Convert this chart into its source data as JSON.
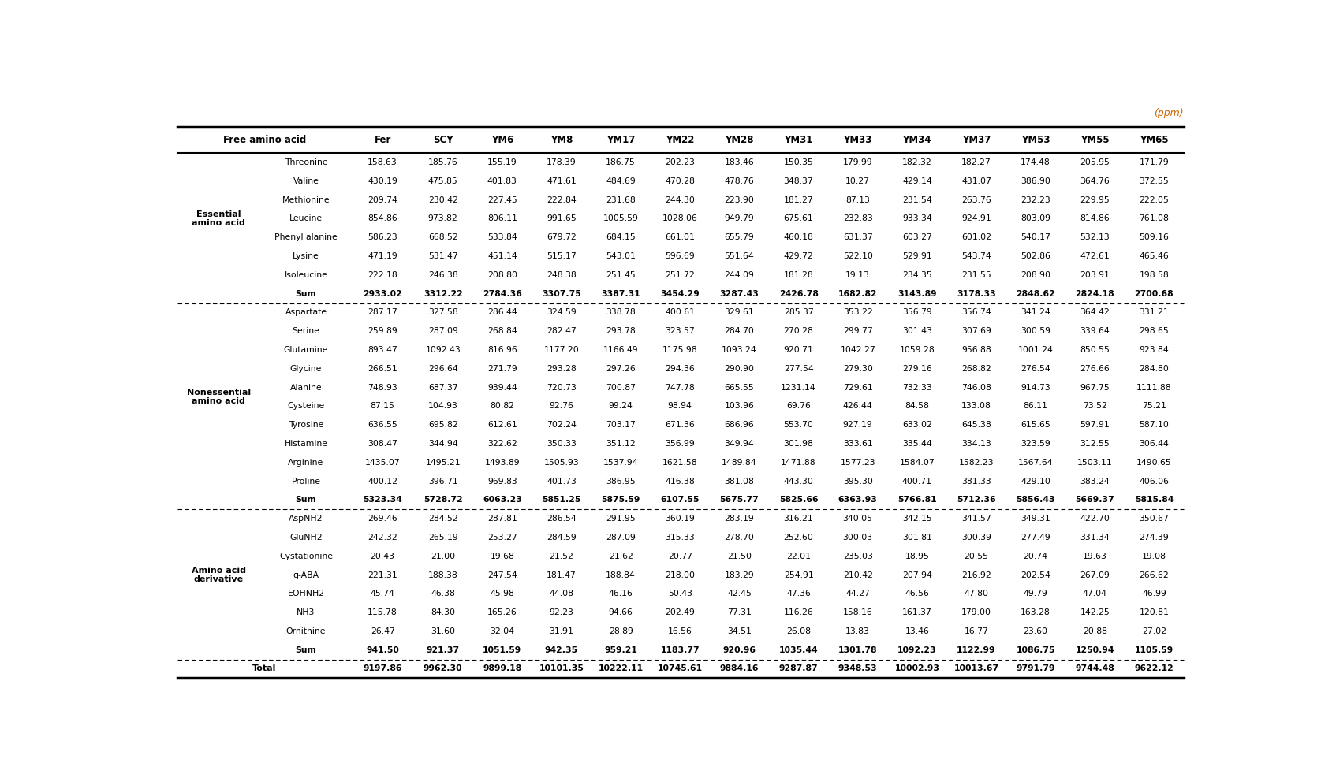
{
  "title_note": "(ppm)",
  "col_headers": [
    "Free amino acid",
    "Fer",
    "SCY",
    "YM6",
    "YM8",
    "YM17",
    "YM22",
    "YM28",
    "YM31",
    "YM33",
    "YM34",
    "YM37",
    "YM53",
    "YM55",
    "YM65"
  ],
  "groups": [
    {
      "group_label": "Essential\namino acid",
      "rows": [
        [
          "Threonine",
          "158.63",
          "185.76",
          "155.19",
          "178.39",
          "186.75",
          "202.23",
          "183.46",
          "150.35",
          "179.99",
          "182.32",
          "182.27",
          "174.48",
          "205.95",
          "171.79"
        ],
        [
          "Valine",
          "430.19",
          "475.85",
          "401.83",
          "471.61",
          "484.69",
          "470.28",
          "478.76",
          "348.37",
          "10.27",
          "429.14",
          "431.07",
          "386.90",
          "364.76",
          "372.55"
        ],
        [
          "Methionine",
          "209.74",
          "230.42",
          "227.45",
          "222.84",
          "231.68",
          "244.30",
          "223.90",
          "181.27",
          "87.13",
          "231.54",
          "263.76",
          "232.23",
          "229.95",
          "222.05"
        ],
        [
          "Leucine",
          "854.86",
          "973.82",
          "806.11",
          "991.65",
          "1005.59",
          "1028.06",
          "949.79",
          "675.61",
          "232.83",
          "933.34",
          "924.91",
          "803.09",
          "814.86",
          "761.08"
        ],
        [
          "Phenyl alanine",
          "586.23",
          "668.52",
          "533.84",
          "679.72",
          "684.15",
          "661.01",
          "655.79",
          "460.18",
          "631.37",
          "603.27",
          "601.02",
          "540.17",
          "532.13",
          "509.16"
        ],
        [
          "Lysine",
          "471.19",
          "531.47",
          "451.14",
          "515.17",
          "543.01",
          "596.69",
          "551.64",
          "429.72",
          "522.10",
          "529.91",
          "543.74",
          "502.86",
          "472.61",
          "465.46"
        ],
        [
          "Isoleucine",
          "222.18",
          "246.38",
          "208.80",
          "248.38",
          "251.45",
          "251.72",
          "244.09",
          "181.28",
          "19.13",
          "234.35",
          "231.55",
          "208.90",
          "203.91",
          "198.58"
        ],
        [
          "Sum",
          "2933.02",
          "3312.22",
          "2784.36",
          "3307.75",
          "3387.31",
          "3454.29",
          "3287.43",
          "2426.78",
          "1682.82",
          "3143.89",
          "3178.33",
          "2848.62",
          "2824.18",
          "2700.68"
        ]
      ]
    },
    {
      "group_label": "Nonessential\namino acid",
      "rows": [
        [
          "Aspartate",
          "287.17",
          "327.58",
          "286.44",
          "324.59",
          "338.78",
          "400.61",
          "329.61",
          "285.37",
          "353.22",
          "356.79",
          "356.74",
          "341.24",
          "364.42",
          "331.21"
        ],
        [
          "Serine",
          "259.89",
          "287.09",
          "268.84",
          "282.47",
          "293.78",
          "323.57",
          "284.70",
          "270.28",
          "299.77",
          "301.43",
          "307.69",
          "300.59",
          "339.64",
          "298.65"
        ],
        [
          "Glutamine",
          "893.47",
          "1092.43",
          "816.96",
          "1177.20",
          "1166.49",
          "1175.98",
          "1093.24",
          "920.71",
          "1042.27",
          "1059.28",
          "956.88",
          "1001.24",
          "850.55",
          "923.84"
        ],
        [
          "Glycine",
          "266.51",
          "296.64",
          "271.79",
          "293.28",
          "297.26",
          "294.36",
          "290.90",
          "277.54",
          "279.30",
          "279.16",
          "268.82",
          "276.54",
          "276.66",
          "284.80"
        ],
        [
          "Alanine",
          "748.93",
          "687.37",
          "939.44",
          "720.73",
          "700.87",
          "747.78",
          "665.55",
          "1231.14",
          "729.61",
          "732.33",
          "746.08",
          "914.73",
          "967.75",
          "1111.88"
        ],
        [
          "Cysteine",
          "87.15",
          "104.93",
          "80.82",
          "92.76",
          "99.24",
          "98.94",
          "103.96",
          "69.76",
          "426.44",
          "84.58",
          "133.08",
          "86.11",
          "73.52",
          "75.21"
        ],
        [
          "Tyrosine",
          "636.55",
          "695.82",
          "612.61",
          "702.24",
          "703.17",
          "671.36",
          "686.96",
          "553.70",
          "927.19",
          "633.02",
          "645.38",
          "615.65",
          "597.91",
          "587.10"
        ],
        [
          "Histamine",
          "308.47",
          "344.94",
          "322.62",
          "350.33",
          "351.12",
          "356.99",
          "349.94",
          "301.98",
          "333.61",
          "335.44",
          "334.13",
          "323.59",
          "312.55",
          "306.44"
        ],
        [
          "Arginine",
          "1435.07",
          "1495.21",
          "1493.89",
          "1505.93",
          "1537.94",
          "1621.58",
          "1489.84",
          "1471.88",
          "1577.23",
          "1584.07",
          "1582.23",
          "1567.64",
          "1503.11",
          "1490.65"
        ],
        [
          "Proline",
          "400.12",
          "396.71",
          "969.83",
          "401.73",
          "386.95",
          "416.38",
          "381.08",
          "443.30",
          "395.30",
          "400.71",
          "381.33",
          "429.10",
          "383.24",
          "406.06"
        ],
        [
          "Sum",
          "5323.34",
          "5728.72",
          "6063.23",
          "5851.25",
          "5875.59",
          "6107.55",
          "5675.77",
          "5825.66",
          "6363.93",
          "5766.81",
          "5712.36",
          "5856.43",
          "5669.37",
          "5815.84"
        ]
      ]
    },
    {
      "group_label": "Amino acid\nderivative",
      "rows": [
        [
          "AspNH2",
          "269.46",
          "284.52",
          "287.81",
          "286.54",
          "291.95",
          "360.19",
          "283.19",
          "316.21",
          "340.05",
          "342.15",
          "341.57",
          "349.31",
          "422.70",
          "350.67"
        ],
        [
          "GluNH2",
          "242.32",
          "265.19",
          "253.27",
          "284.59",
          "287.09",
          "315.33",
          "278.70",
          "252.60",
          "300.03",
          "301.81",
          "300.39",
          "277.49",
          "331.34",
          "274.39"
        ],
        [
          "Cystationine",
          "20.43",
          "21.00",
          "19.68",
          "21.52",
          "21.62",
          "20.77",
          "21.50",
          "22.01",
          "235.03",
          "18.95",
          "20.55",
          "20.74",
          "19.63",
          "19.08"
        ],
        [
          "g-ABA",
          "221.31",
          "188.38",
          "247.54",
          "181.47",
          "188.84",
          "218.00",
          "183.29",
          "254.91",
          "210.42",
          "207.94",
          "216.92",
          "202.54",
          "267.09",
          "266.62"
        ],
        [
          "EOHNH2",
          "45.74",
          "46.38",
          "45.98",
          "44.08",
          "46.16",
          "50.43",
          "42.45",
          "47.36",
          "44.27",
          "46.56",
          "47.80",
          "49.79",
          "47.04",
          "46.99"
        ],
        [
          "NH3",
          "115.78",
          "84.30",
          "165.26",
          "92.23",
          "94.66",
          "202.49",
          "77.31",
          "116.26",
          "158.16",
          "161.37",
          "179.00",
          "163.28",
          "142.25",
          "120.81"
        ],
        [
          "Ornithine",
          "26.47",
          "31.60",
          "32.04",
          "31.91",
          "28.89",
          "16.56",
          "34.51",
          "26.08",
          "13.83",
          "13.46",
          "16.77",
          "23.60",
          "20.88",
          "27.02"
        ],
        [
          "Sum",
          "941.50",
          "921.37",
          "1051.59",
          "942.35",
          "959.21",
          "1183.77",
          "920.96",
          "1035.44",
          "1301.78",
          "1092.23",
          "1122.99",
          "1086.75",
          "1250.94",
          "1105.59"
        ]
      ]
    }
  ],
  "total_row": [
    "Total",
    "9197.86",
    "9962.30",
    "9899.18",
    "10101.35",
    "10222.11",
    "10745.61",
    "9884.16",
    "9287.87",
    "9348.53",
    "10002.93",
    "10013.67",
    "9791.79",
    "9744.48",
    "9622.12"
  ]
}
